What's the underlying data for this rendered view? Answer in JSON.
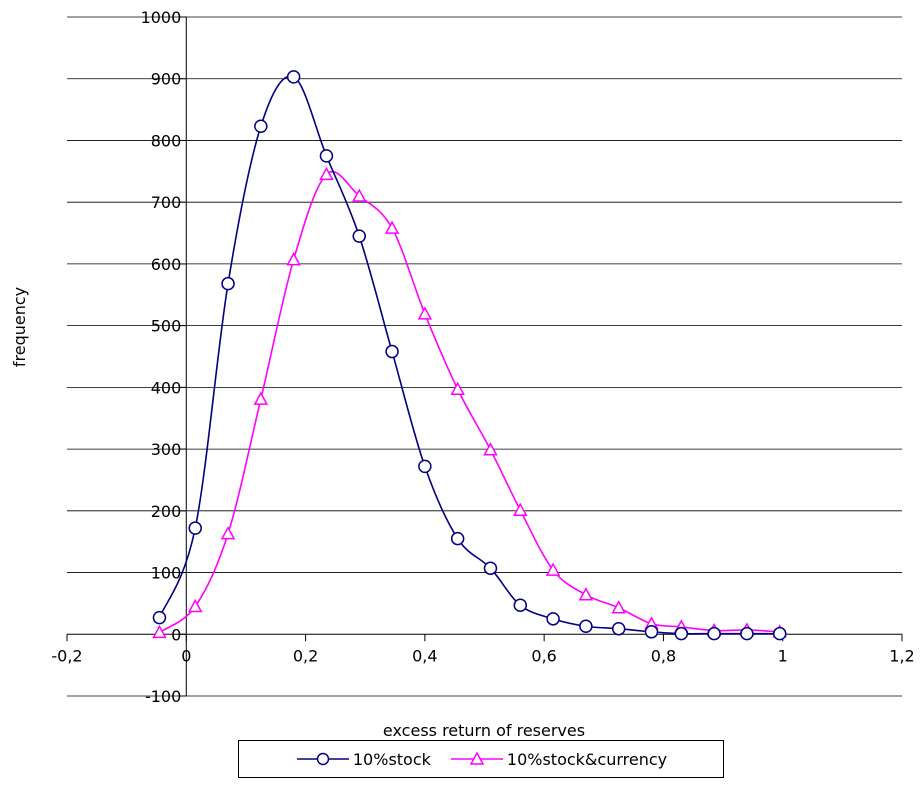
{
  "chart_data": {
    "type": "line",
    "title": "",
    "xlabel": "excess return of reserves",
    "ylabel": "frequency",
    "xlim": [
      -0.2,
      1.2
    ],
    "ylim": [
      -100,
      1000
    ],
    "x_ticks": [
      -0.2,
      0,
      0.2,
      0.4,
      0.6,
      0.8,
      1,
      1.2
    ],
    "x_tick_labels": [
      "-0,2",
      "0",
      "0,2",
      "0,4",
      "0,6",
      "0,8",
      "1",
      "1,2"
    ],
    "y_ticks": [
      -100,
      0,
      100,
      200,
      300,
      400,
      500,
      600,
      700,
      800,
      900,
      1000
    ],
    "y_tick_labels": [
      "-100",
      "0",
      "100",
      "200",
      "300",
      "400",
      "500",
      "600",
      "700",
      "800",
      "900",
      "1000"
    ],
    "grid": "horizontal",
    "legend": "bottom",
    "series": [
      {
        "name": "10%stock",
        "color": "#000080",
        "marker": "circle",
        "x": [
          -0.045,
          0.015,
          0.07,
          0.125,
          0.18,
          0.235,
          0.29,
          0.345,
          0.4,
          0.455,
          0.51,
          0.56,
          0.615,
          0.67,
          0.725,
          0.78,
          0.83,
          0.885,
          0.94,
          0.995
        ],
        "y": [
          27,
          172,
          568,
          823,
          903,
          775,
          645,
          458,
          272,
          155,
          107,
          47,
          25,
          13,
          9,
          4,
          1,
          1,
          1,
          1
        ]
      },
      {
        "name": "10%stock&currency",
        "color": "#FF00FF",
        "marker": "triangle",
        "x": [
          -0.045,
          0.015,
          0.07,
          0.125,
          0.18,
          0.235,
          0.29,
          0.345,
          0.4,
          0.455,
          0.51,
          0.56,
          0.615,
          0.67,
          0.725,
          0.78,
          0.83,
          0.885,
          0.94,
          0.995
        ],
        "y": [
          3,
          45,
          163,
          381,
          607,
          745,
          710,
          658,
          519,
          397,
          299,
          201,
          104,
          64,
          43,
          17,
          12,
          6,
          7,
          4
        ]
      }
    ]
  }
}
